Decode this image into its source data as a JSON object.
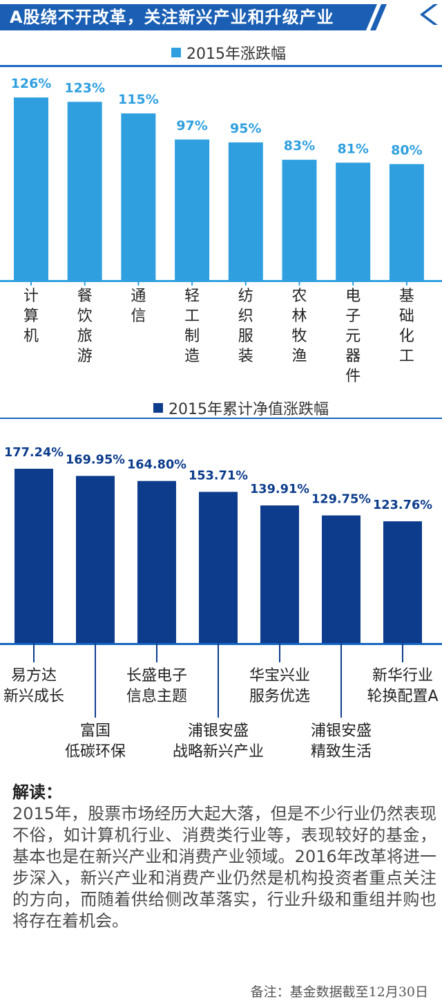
{
  "header": {
    "title": "A股绕不开改革，关注新兴产业和升级产业"
  },
  "colors": {
    "banner": "#1a5fb4",
    "light_blue": "#2f9fe0",
    "dark_blue": "#0d3c8c",
    "rule": "#1565c0"
  },
  "chart_data": [
    {
      "type": "bar",
      "legend": "2015年涨跌幅",
      "categories": [
        "计算机",
        "餐饮旅游",
        "通信",
        "轻工制造",
        "纺织服装",
        "农林牧渔",
        "电子元器件",
        "基础化工"
      ],
      "values": [
        126,
        123,
        115,
        97,
        95,
        83,
        81,
        80
      ],
      "value_labels": [
        "126%",
        "123%",
        "115%",
        "97%",
        "95%",
        "83%",
        "81%",
        "80%"
      ],
      "ylim": [
        0,
        126
      ]
    },
    {
      "type": "bar",
      "legend": "2015年累计净值涨跌幅",
      "categories": [
        [
          "易方达",
          "新兴成长"
        ],
        [
          "富国",
          "低碳环保"
        ],
        [
          "长盛电子",
          "信息主题"
        ],
        [
          "浦银安盛",
          "战略新兴产业"
        ],
        [
          "华宝兴业",
          "服务优选"
        ],
        [
          "浦银安盛",
          "精致生活"
        ],
        [
          "新华行业",
          "轮换配置A"
        ]
      ],
      "values": [
        177.24,
        169.95,
        164.8,
        153.71,
        139.91,
        129.75,
        123.76
      ],
      "value_labels": [
        "177.24%",
        "169.95%",
        "164.80%",
        "153.71%",
        "139.91%",
        "129.75%",
        "123.76%"
      ],
      "ylim": [
        0,
        177.24
      ]
    }
  ],
  "reading": {
    "title": "解读：",
    "body": "2015年，股票市场经历大起大落，但是不少行业仍然表现不俗，如计算机行业、消费类行业等，表现较好的基金，基本也是在新兴产业和消费产业领域。2016年改革将进一步深入，新兴产业和消费产业仍然是机构投资者重点关注的方向，而随着供给侧改革落实，行业升级和重组并购也将存在着机会。",
    "note": "备注：基金数据截至12月30日"
  }
}
